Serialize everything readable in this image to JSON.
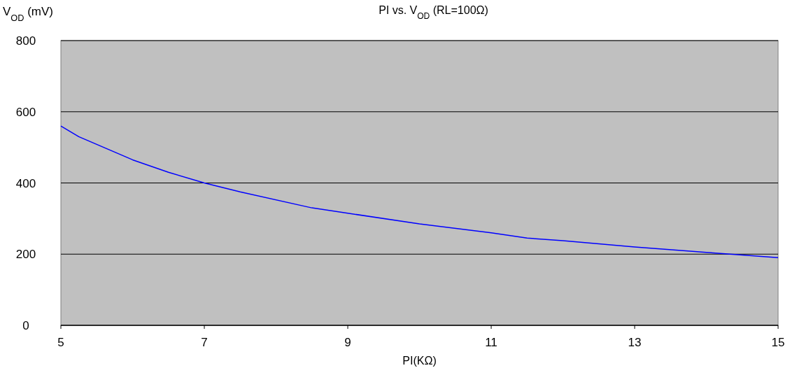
{
  "chart_data": {
    "type": "line",
    "title": "PI vs. V$_{OD}$ (RL=100Ω)",
    "xlabel": "PI(KΩ)",
    "ylabel": "V$_{OD}$ (mV)",
    "series": [
      {
        "color": "#0000ff",
        "x": [
          5,
          5.25,
          6,
          6.5,
          7,
          7.5,
          8.5,
          9,
          10,
          11,
          11.5,
          12,
          13,
          14,
          15
        ],
        "values": [
          560,
          530,
          465,
          430,
          400,
          375,
          330,
          315,
          285,
          260,
          245,
          238,
          220,
          205,
          190
        ]
      }
    ],
    "xlim": [
      5,
      15
    ],
    "xticks": [
      5,
      7,
      9,
      11,
      13,
      15
    ],
    "ylim": [
      0,
      800
    ],
    "yticks": [
      0,
      200,
      400,
      600,
      800
    ],
    "grid": "y",
    "line_style": "solid"
  }
}
